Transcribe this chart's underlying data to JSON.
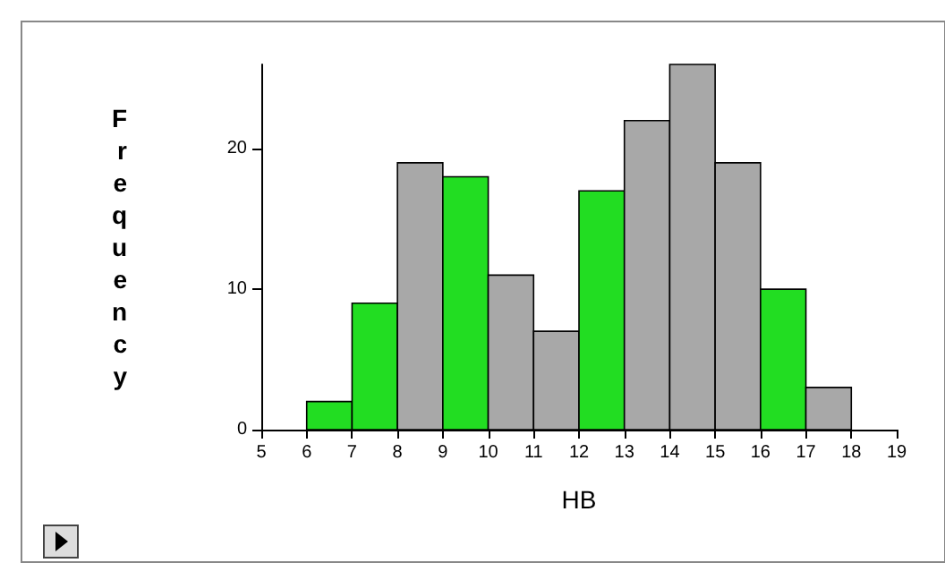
{
  "chart_data": {
    "type": "histogram",
    "xlabel": "HB",
    "ylabel": "Frequency",
    "bins": [
      6,
      7,
      8,
      9,
      10,
      11,
      12,
      13,
      14,
      15,
      16,
      17,
      18
    ],
    "values": [
      2,
      9,
      19,
      18,
      11,
      7,
      17,
      22,
      26,
      19,
      10,
      3
    ],
    "colors": [
      "#22dd22",
      "#22dd22",
      "#a8a8a8",
      "#22dd22",
      "#a8a8a8",
      "#a8a8a8",
      "#22dd22",
      "#a8a8a8",
      "#a8a8a8",
      "#a8a8a8",
      "#22dd22",
      "#a8a8a8"
    ],
    "xlim": [
      5,
      19
    ],
    "xticks": [
      5,
      6,
      7,
      8,
      9,
      10,
      11,
      12,
      13,
      14,
      15,
      16,
      17,
      18,
      19
    ],
    "ylim": [
      0,
      26
    ],
    "yticks": [
      0,
      10,
      20
    ],
    "grid": false
  }
}
